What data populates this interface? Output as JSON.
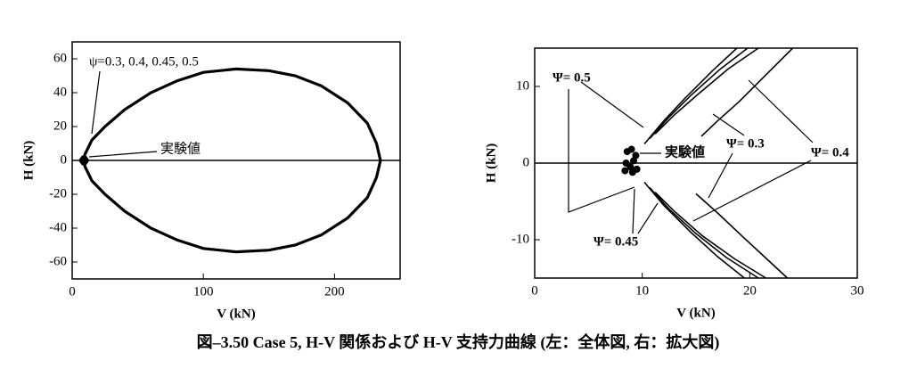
{
  "caption": "図–3.50 Case 5, H-V 関係および H-V 支持力曲線 (左：全体図, 右：拡大図)",
  "chart_data": [
    {
      "type": "line",
      "xlabel": "V (kN)",
      "ylabel": "H (kN)",
      "xlim": [
        0,
        250
      ],
      "ylim": [
        -70,
        70
      ],
      "xticks": [
        0,
        100,
        200
      ],
      "yticks": [
        -60,
        -40,
        -20,
        0,
        20,
        40,
        60
      ],
      "series": [
        {
          "color": "#000000",
          "x": [
            8,
            10,
            15,
            25,
            40,
            60,
            80,
            100,
            125,
            150,
            170,
            190,
            210,
            225,
            232,
            235
          ],
          "values": [
            0,
            4,
            12,
            20,
            30,
            40,
            47,
            52,
            54,
            53,
            50,
            44,
            34,
            22,
            10,
            0
          ]
        },
        {
          "color": "#000000",
          "x": [
            8,
            10,
            15,
            25,
            40,
            60,
            80,
            100,
            125,
            150,
            170,
            190,
            210,
            225,
            232,
            235
          ],
          "values": [
            0,
            -4,
            -12,
            -20,
            -30,
            -40,
            -47,
            -52,
            -54,
            -53,
            -50,
            -44,
            -34,
            -22,
            -10,
            0
          ]
        },
        {
          "type": "scatter",
          "color": "#000000",
          "x": [
            8,
            9,
            10,
            9
          ],
          "values": [
            0,
            1,
            0,
            -1
          ]
        }
      ],
      "annotations": [
        "ψ=0.3, 0.4, 0.45, 0.5",
        "実験値"
      ]
    },
    {
      "type": "line",
      "xlabel": "V (kN)",
      "ylabel": "H (kN)",
      "xlim": [
        0,
        30
      ],
      "ylim": [
        -15,
        15
      ],
      "xticks": [
        0,
        10,
        20,
        30
      ],
      "yticks": [
        -10,
        0,
        10
      ],
      "series": [
        {
          "color": "#000000",
          "x": [
            10.2,
            12,
            14,
            16.5,
            18.8
          ],
          "values": [
            2.5,
            5.5,
            8.5,
            12,
            15
          ]
        },
        {
          "color": "#000000",
          "x": [
            10.7,
            12.5,
            14.5,
            17.2,
            19.8
          ],
          "values": [
            3.2,
            6,
            8.8,
            12.2,
            15
          ]
        },
        {
          "color": "#000000",
          "x": [
            11.2,
            13,
            15.2,
            18,
            20.8
          ],
          "values": [
            3.8,
            6.3,
            9,
            12.3,
            15
          ]
        },
        {
          "color": "#000000",
          "x": [
            15.5,
            17,
            19,
            21.5,
            24
          ],
          "values": [
            3.5,
            5.5,
            8,
            11.5,
            15
          ]
        },
        {
          "color": "#000000",
          "x": [
            10.2,
            12,
            14.5,
            17,
            19.5
          ],
          "values": [
            -2.5,
            -5.5,
            -9,
            -12.2,
            -15
          ]
        },
        {
          "color": "#000000",
          "x": [
            10.7,
            12.5,
            15,
            17.8,
            20.8
          ],
          "values": [
            -3.2,
            -6,
            -9.2,
            -12.3,
            -15
          ]
        },
        {
          "color": "#000000",
          "x": [
            11.2,
            13,
            15.6,
            18.6,
            21.5
          ],
          "values": [
            -3.8,
            -6.3,
            -9.5,
            -12.5,
            -15
          ]
        },
        {
          "color": "#000000",
          "x": [
            15,
            17,
            19.5,
            21.5,
            23.5
          ],
          "values": [
            -4,
            -6.5,
            -9.8,
            -12.4,
            -15
          ]
        },
        {
          "type": "scatter",
          "color": "#000000",
          "x": [
            8.6,
            9,
            9.4,
            8.5,
            9.2,
            8.9,
            8.4,
            9.5,
            9.1
          ],
          "values": [
            1.5,
            1.8,
            1,
            0,
            0.3,
            -0.5,
            -1,
            -0.8,
            -1.2
          ]
        }
      ],
      "annotations": [
        "Ψ= 0.5",
        "Ψ= 0.45",
        "Ψ= 0.3",
        "Ψ= 0.4",
        "実験値"
      ]
    }
  ]
}
